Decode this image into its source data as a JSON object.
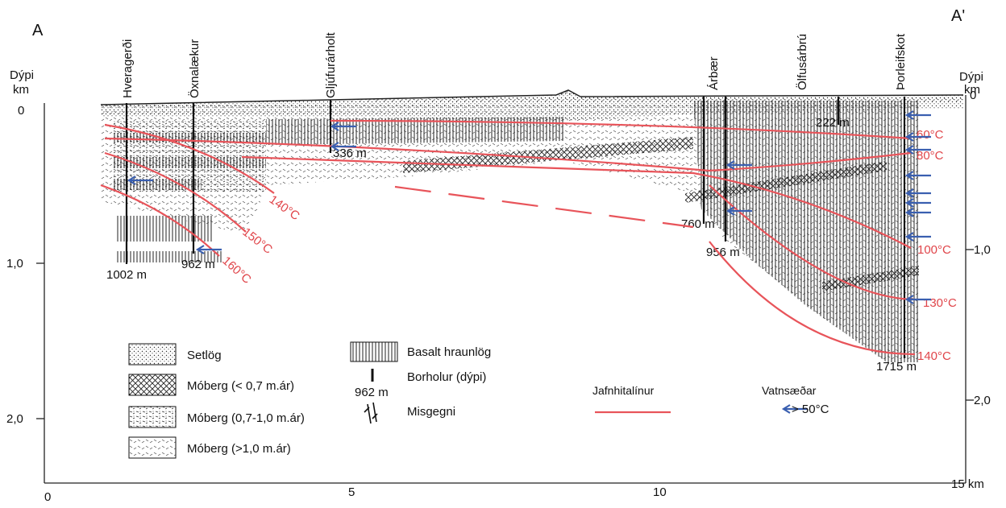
{
  "section": {
    "start_label": "A",
    "end_label": "A'"
  },
  "left_axis": {
    "title": [
      "Dýpi",
      "km"
    ],
    "ticks": [
      "0",
      "1,0",
      "2,0"
    ]
  },
  "right_axis": {
    "title": [
      "Dýpi",
      "km"
    ],
    "ticks": [
      "0",
      "1,0",
      "2,0"
    ]
  },
  "bottom_axis": {
    "ticks": [
      "0",
      "5",
      "10",
      "15 km"
    ]
  },
  "wells": [
    "Hveragerði",
    "Öxnalækur",
    "Gljúfurárholt",
    "Árbær",
    "Ölfusárbrú",
    "Þorleifskot"
  ],
  "depth_labels": [
    "1002 m",
    "962 m",
    "336 m",
    "222 m",
    "760 m",
    "956 m",
    "1715 m"
  ],
  "isotherms": [
    "60°C",
    "80°C",
    "100°C",
    "130°C",
    "140°C",
    "140°C",
    "150°C",
    "160°C"
  ],
  "legend": {
    "rock_types": [
      "Setlög",
      "Móberg (< 0,7 m.ár)",
      "Móberg (0,7-1,0 m.ár)",
      "Móberg (>1,0 m.ár)",
      "Basalt hraunlög"
    ],
    "borehole": "Borholur (dýpi)",
    "borehole_example": "962 m",
    "fault": "Misgegni",
    "isotherm": "Jafnhitalínur",
    "aquifer": "Vatnsæðar",
    "aquifer_note": "> 50°C"
  }
}
